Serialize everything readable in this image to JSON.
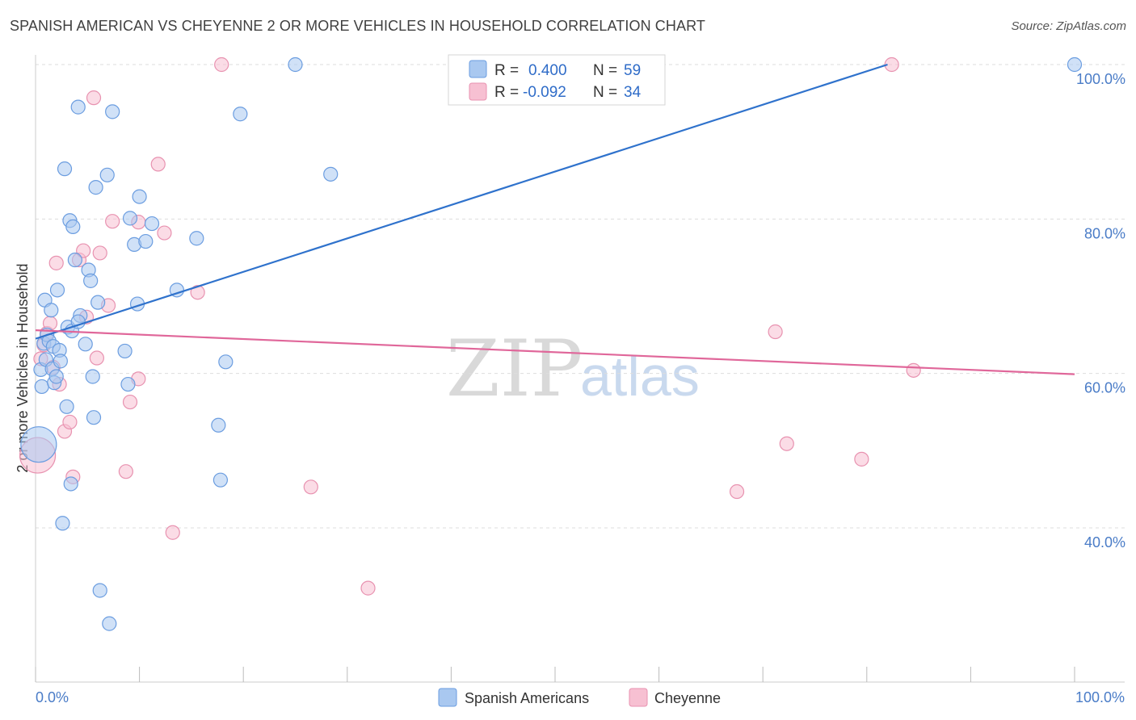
{
  "title": "SPANISH AMERICAN VS CHEYENNE 2 OR MORE VEHICLES IN HOUSEHOLD CORRELATION CHART",
  "source": "Source: ZipAtlas.com",
  "watermark": {
    "part1": "ZIP",
    "part2": "atlas"
  },
  "colors": {
    "blue_fill": "#a9c8f0",
    "blue_stroke": "#6b9de0",
    "blue_line": "#2f72cc",
    "pink_fill": "#f7c0d2",
    "pink_stroke": "#e892b0",
    "pink_line": "#e0679a",
    "grid": "#dddddd",
    "tick_label": "#4a7cc7"
  },
  "legend": {
    "rows": [
      {
        "r_label": "R =",
        "r_value": "0.400",
        "n_label": "N =",
        "n_value": "59"
      },
      {
        "r_label": "R =",
        "r_value": "-0.092",
        "n_label": "N =",
        "n_value": "34"
      }
    ]
  },
  "bottom_legend": [
    "Spanish Americans",
    "Cheyenne"
  ],
  "chart_data": {
    "type": "scatter",
    "title": "SPANISH AMERICAN VS CHEYENNE 2 OR MORE VEHICLES IN HOUSEHOLD CORRELATION CHART",
    "xlabel": "",
    "ylabel": "2 or more Vehicles in Household",
    "xlim": [
      0,
      100
    ],
    "ylim": [
      20,
      102
    ],
    "x_tick_labels": [
      "0.0%",
      "100.0%"
    ],
    "y_ticks": [
      40,
      60,
      80,
      100
    ],
    "y_tick_labels": [
      "40.0%",
      "60.0%",
      "80.0%",
      "100.0%"
    ],
    "grid": true,
    "series": [
      {
        "name": "Spanish Americans",
        "r": 0.4,
        "n": 59,
        "trend": {
          "x": [
            0,
            82
          ],
          "y": [
            64.5,
            100
          ]
        },
        "points": [
          {
            "x": 0.3,
            "y": 50.8,
            "big": true
          },
          {
            "x": 0.5,
            "y": 60.5
          },
          {
            "x": 0.6,
            "y": 58.3
          },
          {
            "x": 0.8,
            "y": 63.9
          },
          {
            "x": 0.9,
            "y": 69.5
          },
          {
            "x": 1.0,
            "y": 61.8
          },
          {
            "x": 1.1,
            "y": 65.0
          },
          {
            "x": 1.3,
            "y": 64.2
          },
          {
            "x": 1.5,
            "y": 68.2
          },
          {
            "x": 1.6,
            "y": 60.6
          },
          {
            "x": 1.7,
            "y": 63.5
          },
          {
            "x": 1.8,
            "y": 58.8
          },
          {
            "x": 2.0,
            "y": 59.6
          },
          {
            "x": 2.1,
            "y": 70.8
          },
          {
            "x": 2.3,
            "y": 63.0
          },
          {
            "x": 2.4,
            "y": 61.6
          },
          {
            "x": 2.6,
            "y": 40.6
          },
          {
            "x": 2.8,
            "y": 86.5
          },
          {
            "x": 3.0,
            "y": 55.7
          },
          {
            "x": 3.1,
            "y": 66.0
          },
          {
            "x": 3.3,
            "y": 79.8
          },
          {
            "x": 3.4,
            "y": 45.7
          },
          {
            "x": 3.5,
            "y": 65.5
          },
          {
            "x": 3.6,
            "y": 79.0
          },
          {
            "x": 3.8,
            "y": 74.7
          },
          {
            "x": 4.1,
            "y": 94.5
          },
          {
            "x": 4.3,
            "y": 67.5
          },
          {
            "x": 4.1,
            "y": 66.7
          },
          {
            "x": 4.8,
            "y": 63.8
          },
          {
            "x": 5.1,
            "y": 73.4
          },
          {
            "x": 5.3,
            "y": 72.0
          },
          {
            "x": 5.5,
            "y": 59.6
          },
          {
            "x": 5.6,
            "y": 54.3
          },
          {
            "x": 5.8,
            "y": 84.1
          },
          {
            "x": 6.0,
            "y": 69.2
          },
          {
            "x": 6.2,
            "y": 31.9
          },
          {
            "x": 6.9,
            "y": 85.7
          },
          {
            "x": 7.1,
            "y": 27.6
          },
          {
            "x": 7.4,
            "y": 93.9
          },
          {
            "x": 8.6,
            "y": 62.9
          },
          {
            "x": 8.9,
            "y": 58.6
          },
          {
            "x": 9.1,
            "y": 80.1
          },
          {
            "x": 9.5,
            "y": 76.7
          },
          {
            "x": 9.8,
            "y": 69.0
          },
          {
            "x": 10.0,
            "y": 82.9
          },
          {
            "x": 10.6,
            "y": 77.1
          },
          {
            "x": 11.2,
            "y": 79.4
          },
          {
            "x": 13.6,
            "y": 70.8
          },
          {
            "x": 15.5,
            "y": 77.5
          },
          {
            "x": 17.6,
            "y": 53.3
          },
          {
            "x": 17.8,
            "y": 46.2
          },
          {
            "x": 18.3,
            "y": 61.5
          },
          {
            "x": 19.7,
            "y": 93.6
          },
          {
            "x": 25.0,
            "y": 100.0
          },
          {
            "x": 28.4,
            "y": 85.8
          },
          {
            "x": 100.0,
            "y": 100.0
          }
        ]
      },
      {
        "name": "Cheyenne",
        "r": -0.092,
        "n": 34,
        "trend": {
          "x": [
            0,
            100
          ],
          "y": [
            65.6,
            59.9
          ]
        },
        "points": [
          {
            "x": 0.2,
            "y": 49.4,
            "big": true
          },
          {
            "x": 0.5,
            "y": 61.9
          },
          {
            "x": 0.8,
            "y": 63.7
          },
          {
            "x": 1.1,
            "y": 65.2
          },
          {
            "x": 1.4,
            "y": 66.5
          },
          {
            "x": 1.7,
            "y": 60.8
          },
          {
            "x": 2.0,
            "y": 74.3
          },
          {
            "x": 2.3,
            "y": 58.6
          },
          {
            "x": 2.8,
            "y": 52.5
          },
          {
            "x": 3.3,
            "y": 53.7
          },
          {
            "x": 3.6,
            "y": 46.6
          },
          {
            "x": 4.2,
            "y": 74.7
          },
          {
            "x": 4.6,
            "y": 75.9
          },
          {
            "x": 4.9,
            "y": 67.3
          },
          {
            "x": 5.6,
            "y": 95.7
          },
          {
            "x": 5.9,
            "y": 62.0
          },
          {
            "x": 6.2,
            "y": 75.6
          },
          {
            "x": 7.0,
            "y": 68.8
          },
          {
            "x": 7.4,
            "y": 79.7
          },
          {
            "x": 8.7,
            "y": 47.3
          },
          {
            "x": 9.1,
            "y": 56.3
          },
          {
            "x": 9.9,
            "y": 79.6
          },
          {
            "x": 9.9,
            "y": 59.3
          },
          {
            "x": 11.8,
            "y": 87.1
          },
          {
            "x": 12.4,
            "y": 78.2
          },
          {
            "x": 13.2,
            "y": 39.4
          },
          {
            "x": 15.6,
            "y": 70.5
          },
          {
            "x": 17.9,
            "y": 100.0
          },
          {
            "x": 26.5,
            "y": 45.3
          },
          {
            "x": 32.0,
            "y": 32.2
          },
          {
            "x": 67.5,
            "y": 44.7
          },
          {
            "x": 71.2,
            "y": 65.4
          },
          {
            "x": 72.3,
            "y": 50.9
          },
          {
            "x": 79.5,
            "y": 48.9
          },
          {
            "x": 82.4,
            "y": 100.0
          },
          {
            "x": 84.5,
            "y": 60.4
          }
        ]
      }
    ]
  }
}
